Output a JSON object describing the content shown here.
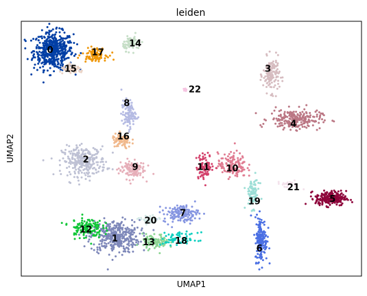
{
  "chart_data": {
    "type": "scatter",
    "title": "leiden",
    "xlabel": "UMAP1",
    "ylabel": "UMAP2",
    "xlim": [
      0,
      100
    ],
    "ylim": [
      0,
      100
    ],
    "grid": false,
    "ticks": false,
    "legend": "on data",
    "clusters": [
      {
        "label": "0",
        "color": "#023fa5",
        "cx": 9.5,
        "cy": 88.5,
        "sx": 3.6,
        "sy": 4.6,
        "n": 500
      },
      {
        "label": "1",
        "color": "#7d87b9",
        "cx": 27.5,
        "cy": 15.5,
        "sx": 4.5,
        "sy": 4.0,
        "n": 360
      },
      {
        "label": "2",
        "color": "#bec1d4",
        "cx": 18.5,
        "cy": 45.0,
        "sx": 4.0,
        "sy": 3.6,
        "n": 280
      },
      {
        "label": "3",
        "color": "#d6bcc0",
        "cx": 73.5,
        "cy": 79.0,
        "sx": 1.5,
        "sy": 4.2,
        "n": 150
      },
      {
        "label": "4",
        "color": "#bb7784",
        "cx": 80.5,
        "cy": 61.5,
        "sx": 4.8,
        "sy": 2.4,
        "n": 230
      },
      {
        "label": "5",
        "color": "#8e063b",
        "cx": 91.0,
        "cy": 30.5,
        "sx": 2.8,
        "sy": 1.8,
        "n": 230
      },
      {
        "label": "6",
        "color": "#4a6fe3",
        "cx": 70.5,
        "cy": 14.5,
        "sx": 1.1,
        "sy": 5.5,
        "n": 160
      },
      {
        "label": "7",
        "color": "#8595e1",
        "cx": 47.0,
        "cy": 24.5,
        "sx": 3.2,
        "sy": 2.2,
        "n": 140
      },
      {
        "label": "8",
        "color": "#b5bbe3",
        "cx": 31.5,
        "cy": 63.5,
        "sx": 1.3,
        "sy": 3.4,
        "n": 110
      },
      {
        "label": "9",
        "color": "#e6afb9",
        "cx": 32.5,
        "cy": 42.0,
        "sx": 2.4,
        "sy": 2.4,
        "n": 120
      },
      {
        "label": "10",
        "color": "#e07b91",
        "cx": 62.0,
        "cy": 43.5,
        "sx": 2.6,
        "sy": 3.0,
        "n": 140
      },
      {
        "label": "11",
        "color": "#d33f6a",
        "cx": 54.0,
        "cy": 43.0,
        "sx": 1.6,
        "sy": 3.0,
        "n": 90
      },
      {
        "label": "12",
        "color": "#11c638",
        "cx": 19.0,
        "cy": 19.0,
        "sx": 3.0,
        "sy": 2.6,
        "n": 130
      },
      {
        "label": "13",
        "color": "#8dd593",
        "cx": 39.5,
        "cy": 13.5,
        "sx": 2.4,
        "sy": 1.8,
        "n": 100
      },
      {
        "label": "14",
        "color": "#c6dec7",
        "cx": 32.5,
        "cy": 91.5,
        "sx": 1.6,
        "sy": 1.8,
        "n": 70
      },
      {
        "label": "15",
        "color": "#ead3c6",
        "cx": 15.0,
        "cy": 81.0,
        "sx": 2.2,
        "sy": 1.0,
        "n": 60
      },
      {
        "label": "16",
        "color": "#f0b98d",
        "cx": 29.5,
        "cy": 53.0,
        "sx": 1.8,
        "sy": 1.8,
        "n": 80
      },
      {
        "label": "17",
        "color": "#ef9708",
        "cx": 21.5,
        "cy": 87.0,
        "sx": 2.2,
        "sy": 1.5,
        "n": 100
      },
      {
        "label": "18",
        "color": "#0fcfc0",
        "cx": 46.5,
        "cy": 14.5,
        "sx": 3.4,
        "sy": 1.6,
        "n": 70
      },
      {
        "label": "19",
        "color": "#9cded6",
        "cx": 68.0,
        "cy": 32.5,
        "sx": 1.2,
        "sy": 3.6,
        "n": 80
      },
      {
        "label": "20",
        "color": "#d5eae7",
        "cx": 37.5,
        "cy": 22.0,
        "sx": 1.8,
        "sy": 1.2,
        "n": 40
      },
      {
        "label": "21",
        "color": "#f3e1eb",
        "cx": 78.5,
        "cy": 36.0,
        "sx": 2.2,
        "sy": 0.8,
        "n": 25
      },
      {
        "label": "22",
        "color": "#f6c4e1",
        "cx": 48.0,
        "cy": 73.0,
        "sx": 0.4,
        "sy": 0.4,
        "n": 8
      }
    ],
    "labels": [
      {
        "text": "0",
        "x": 8.5,
        "y": 89.0
      },
      {
        "text": "17",
        "x": 22.5,
        "y": 88.0
      },
      {
        "text": "14",
        "x": 33.5,
        "y": 91.5
      },
      {
        "text": "15",
        "x": 14.5,
        "y": 81.5
      },
      {
        "text": "3",
        "x": 72.5,
        "y": 81.5
      },
      {
        "text": "22",
        "x": 51.0,
        "y": 73.5
      },
      {
        "text": "8",
        "x": 31.0,
        "y": 68.0
      },
      {
        "text": "4",
        "x": 80.0,
        "y": 60.0
      },
      {
        "text": "16",
        "x": 30.0,
        "y": 55.0
      },
      {
        "text": "2",
        "x": 19.0,
        "y": 46.0
      },
      {
        "text": "9",
        "x": 33.5,
        "y": 43.0
      },
      {
        "text": "11",
        "x": 53.5,
        "y": 43.0
      },
      {
        "text": "10",
        "x": 62.0,
        "y": 42.5
      },
      {
        "text": "21",
        "x": 80.0,
        "y": 35.0
      },
      {
        "text": "5",
        "x": 91.5,
        "y": 30.5
      },
      {
        "text": "19",
        "x": 68.5,
        "y": 29.5
      },
      {
        "text": "7",
        "x": 47.5,
        "y": 25.0
      },
      {
        "text": "20",
        "x": 38.0,
        "y": 22.0
      },
      {
        "text": "12",
        "x": 19.0,
        "y": 18.5
      },
      {
        "text": "1",
        "x": 27.5,
        "y": 15.0
      },
      {
        "text": "13",
        "x": 37.5,
        "y": 13.5
      },
      {
        "text": "18",
        "x": 47.0,
        "y": 14.0
      },
      {
        "text": "6",
        "x": 70.0,
        "y": 11.0
      }
    ]
  }
}
